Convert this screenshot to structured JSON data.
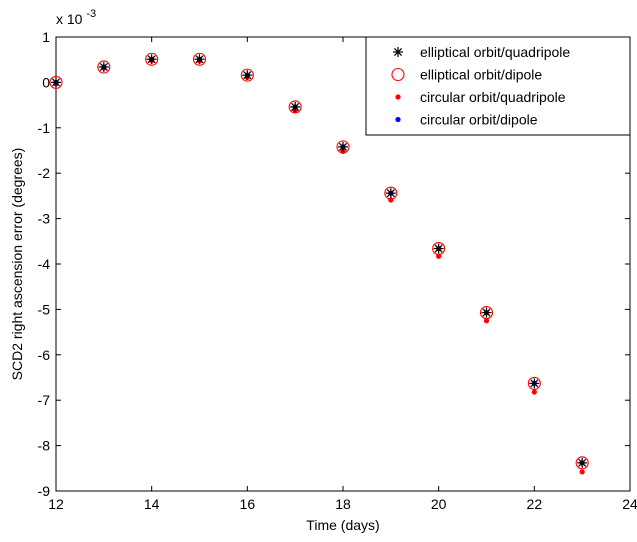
{
  "chart_data": {
    "type": "scatter",
    "xlabel": "Time (days)",
    "ylabel": "SCD2 right ascension error (degrees)",
    "y_multiplier_label": "x 10",
    "y_multiplier_exponent": "-3",
    "xlim": [
      12,
      24
    ],
    "ylim": [
      -9,
      1
    ],
    "x_ticks": [
      12,
      14,
      16,
      18,
      20,
      22,
      24
    ],
    "y_ticks": [
      -9,
      -8,
      -7,
      -6,
      -5,
      -4,
      -3,
      -2,
      -1,
      0,
      1
    ],
    "grid": false,
    "legend_position": "top-right",
    "x": [
      12,
      13,
      14,
      15,
      16,
      17,
      18,
      19,
      20,
      21,
      22,
      23
    ],
    "series": [
      {
        "name": "elliptical orbit/quadripole",
        "marker": "star",
        "color": "#000000",
        "values": [
          0.0,
          0.34,
          0.51,
          0.51,
          0.16,
          -0.54,
          -1.42,
          -2.44,
          -3.66,
          -5.07,
          -6.63,
          -8.38
        ]
      },
      {
        "name": "elliptical orbit/dipole",
        "marker": "open-circle",
        "color": "#ff0000",
        "values": [
          0.0,
          0.34,
          0.51,
          0.51,
          0.16,
          -0.54,
          -1.42,
          -2.44,
          -3.66,
          -5.07,
          -6.63,
          -8.38
        ]
      },
      {
        "name": "circular orbit/quadripole",
        "marker": "dot",
        "color": "#ff0000",
        "values": [
          -0.03,
          0.32,
          0.48,
          0.47,
          0.11,
          -0.62,
          -1.52,
          -2.59,
          -3.83,
          -5.25,
          -6.82,
          -8.58
        ]
      },
      {
        "name": "circular orbit/dipole",
        "marker": "dot",
        "color": "#0000ff",
        "values": [
          0.0,
          0.34,
          0.51,
          0.51,
          0.16,
          -0.54,
          -1.42,
          -2.44,
          -3.66,
          -5.07,
          -6.63,
          -8.38
        ]
      }
    ]
  }
}
